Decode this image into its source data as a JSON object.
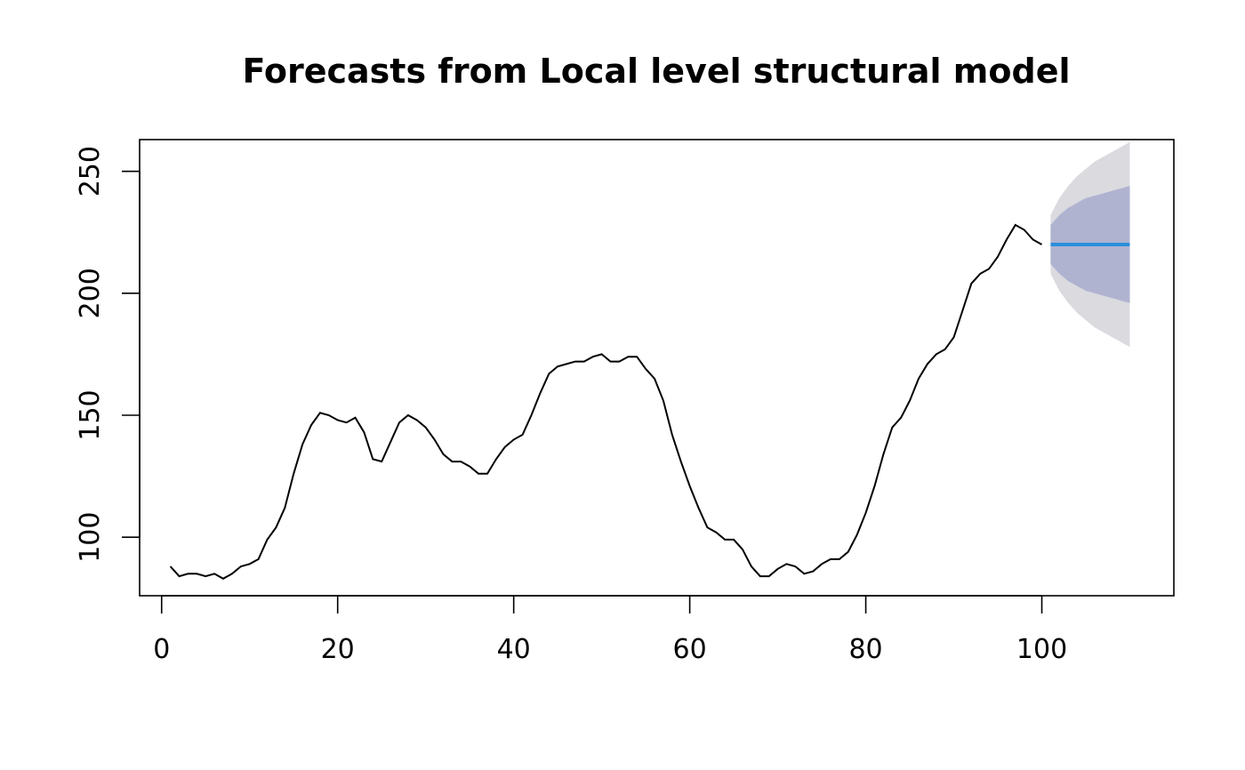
{
  "chart_data": {
    "type": "line",
    "title": "Forecasts from Local level structural model",
    "xlabel": "",
    "ylabel": "",
    "xlim": [
      -2.5,
      115
    ],
    "ylim": [
      76,
      263
    ],
    "x_ticks": [
      0,
      20,
      40,
      60,
      80,
      100
    ],
    "y_ticks": [
      100,
      150,
      200,
      250
    ],
    "grid": false,
    "series": [
      {
        "kind": "observed",
        "color": "#000000",
        "x": [
          1,
          2,
          3,
          4,
          5,
          6,
          7,
          8,
          9,
          10,
          11,
          12,
          13,
          14,
          15,
          16,
          17,
          18,
          19,
          20,
          21,
          22,
          23,
          24,
          25,
          26,
          27,
          28,
          29,
          30,
          31,
          32,
          33,
          34,
          35,
          36,
          37,
          38,
          39,
          40,
          41,
          42,
          43,
          44,
          45,
          46,
          47,
          48,
          49,
          50,
          51,
          52,
          53,
          54,
          55,
          56,
          57,
          58,
          59,
          60,
          61,
          62,
          63,
          64,
          65,
          66,
          67,
          68,
          69,
          70,
          71,
          72,
          73,
          74,
          75,
          76,
          77,
          78,
          79,
          80,
          81,
          82,
          83,
          84,
          85,
          86,
          87,
          88,
          89,
          90,
          91,
          92,
          93,
          94,
          95,
          96,
          97,
          98,
          99,
          100
        ],
        "y": [
          88,
          84,
          85,
          85,
          84,
          85,
          83,
          85,
          88,
          89,
          91,
          99,
          104,
          112,
          126,
          138,
          146,
          151,
          150,
          148,
          147,
          149,
          143,
          132,
          131,
          139,
          147,
          150,
          148,
          145,
          140,
          134,
          131,
          131,
          129,
          126,
          126,
          132,
          137,
          140,
          142,
          150,
          159,
          167,
          170,
          171,
          172,
          172,
          174,
          175,
          172,
          172,
          174,
          174,
          169,
          165,
          156,
          142,
          131,
          121,
          112,
          104,
          102,
          99,
          99,
          95,
          88,
          84,
          84,
          87,
          89,
          88,
          85,
          86,
          89,
          91,
          91,
          94,
          101,
          110,
          121,
          134,
          145,
          149,
          156,
          165,
          171,
          175,
          177,
          182,
          193,
          204,
          208,
          210,
          215,
          222,
          228,
          226,
          222,
          220
        ]
      }
    ],
    "forecast": {
      "x": [
        101,
        102,
        103,
        104,
        105,
        106,
        107,
        108,
        109,
        110
      ],
      "mean": [
        220,
        220,
        220,
        220,
        220,
        220,
        220,
        220,
        220,
        220
      ],
      "lower80": [
        212,
        208,
        205,
        203,
        201,
        200,
        199,
        198,
        197,
        196
      ],
      "upper80": [
        228,
        232,
        235,
        237,
        239,
        240,
        241,
        242,
        243,
        244
      ],
      "lower95": [
        208,
        201,
        196,
        192,
        189,
        186,
        184,
        182,
        180,
        178
      ],
      "upper95": [
        232,
        239,
        244,
        248,
        251,
        254,
        256,
        258,
        260,
        262
      ],
      "mean_color": "#2b8fdb",
      "band80_color": "#b0b3d0",
      "band95_color": "#dadadf"
    }
  }
}
